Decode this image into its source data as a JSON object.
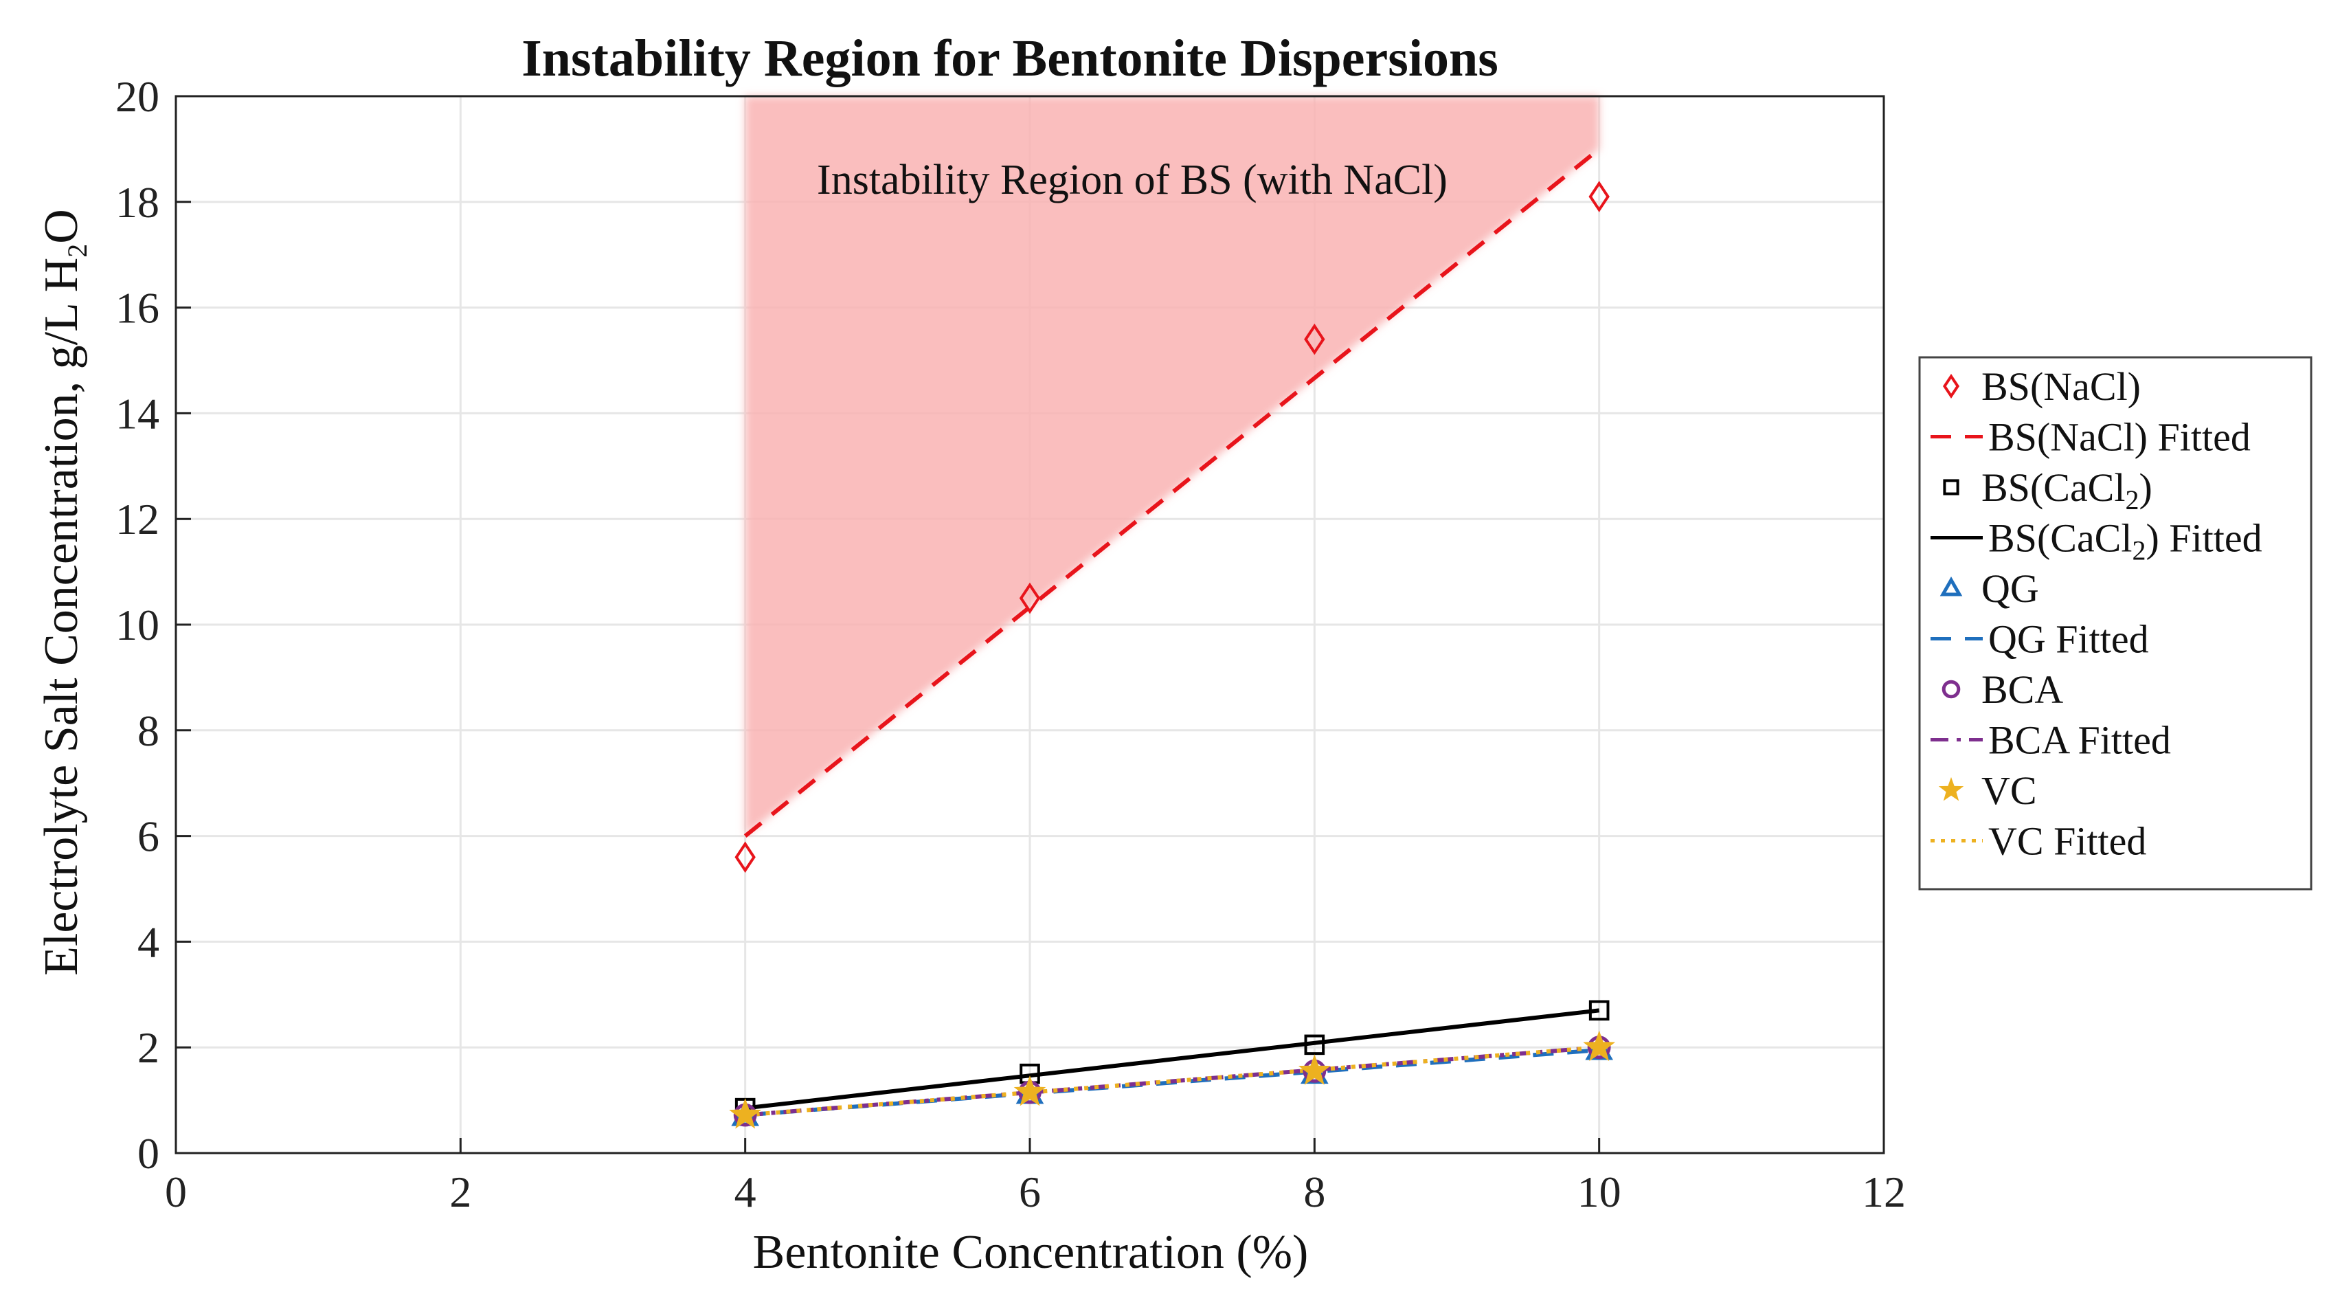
{
  "chart_data": {
    "type": "line",
    "title": "Instability Region for Bentonite Dispersions",
    "xlabel": "Bentonite Concentration (%)",
    "ylabel_main": "Electrolyte  Salt  Concentration,  g/L  H",
    "ylabel_sub": "2",
    "ylabel_tail": "O",
    "xlim": [
      0,
      12
    ],
    "ylim": [
      0,
      20
    ],
    "xticks": [
      0,
      2,
      4,
      6,
      8,
      10,
      12
    ],
    "yticks": [
      0,
      2,
      4,
      6,
      8,
      10,
      12,
      14,
      16,
      18,
      20
    ],
    "grid": true,
    "legend_position": "right",
    "annotation": "Instability Region of BS (with NaCl)",
    "region": {
      "name": "Instability Region of BS (with NaCl)",
      "color": "#f9b3b3",
      "x_start": 4,
      "x_end": 10
    },
    "x": [
      4,
      6,
      8,
      10
    ],
    "series": [
      {
        "name": "BS(NaCl)",
        "legend": "BS(NaCl)",
        "values": [
          5.6,
          10.5,
          15.4,
          18.1
        ],
        "marker": "diamond",
        "color": "#e8141b"
      },
      {
        "name": "BS(NaCl) Fitted",
        "legend": "BS(NaCl) Fitted",
        "fit": [
          6.0,
          19.0
        ],
        "line": "dash",
        "color": "#e8141b"
      },
      {
        "name": "BS(CaCl2)",
        "legend_main": "BS(CaCl",
        "legend_sub": "2",
        "legend_tail": ")",
        "values": [
          0.85,
          1.5,
          2.05,
          2.7
        ],
        "marker": "square",
        "color": "#000000"
      },
      {
        "name": "BS(CaCl2) Fitted",
        "legend_main": "BS(CaCl",
        "legend_sub": "2",
        "legend_tail": ")  Fitted",
        "fit": [
          0.85,
          2.7
        ],
        "line": "solid",
        "color": "#000000"
      },
      {
        "name": "QG",
        "legend": "QG",
        "values": [
          0.7,
          1.12,
          1.5,
          1.95
        ],
        "marker": "triangle",
        "color": "#1f6fbd"
      },
      {
        "name": "QG Fitted",
        "legend": "QG Fitted",
        "fit": [
          0.72,
          1.95
        ],
        "line": "dash",
        "color": "#1f6fbd"
      },
      {
        "name": "BCA",
        "legend": "BCA",
        "values": [
          0.72,
          1.15,
          1.55,
          2.0
        ],
        "marker": "circle",
        "color": "#7e2f8e"
      },
      {
        "name": "BCA Fitted",
        "legend": "BCA Fitted",
        "fit": [
          0.72,
          2.0
        ],
        "line": "dashdot",
        "color": "#7e2f8e"
      },
      {
        "name": "VC",
        "legend": "VC",
        "values": [
          0.72,
          1.15,
          1.55,
          2.0
        ],
        "marker": "star",
        "color": "#edb120"
      },
      {
        "name": "VC Fitted",
        "legend": "VC Fitted",
        "fit": [
          0.72,
          2.0
        ],
        "line": "dot",
        "color": "#edb120"
      }
    ]
  }
}
